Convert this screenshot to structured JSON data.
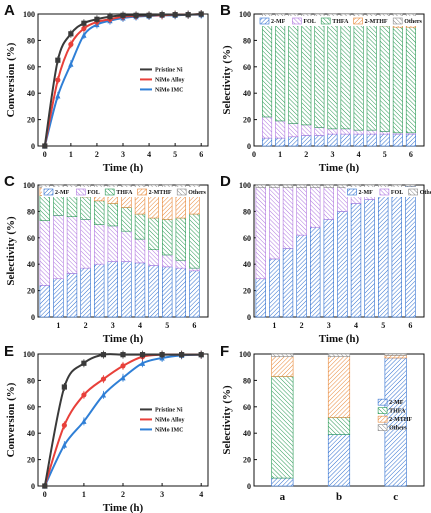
{
  "colors": {
    "pristine": "#3a3a3a",
    "nimo_alloy": "#e8403a",
    "nimo_imc": "#2f7fd6",
    "mf": "#2f6fd0",
    "fol": "#b078e0",
    "thfa": "#2a9a55",
    "mthf": "#e8893a",
    "others": "#8a8a8a"
  },
  "chart_data": [
    {
      "panel": "A",
      "type": "line",
      "xlabel": "Time (h)",
      "ylabel": "Conversion (%)",
      "xlim": [
        0,
        6
      ],
      "ylim": [
        0,
        100
      ],
      "xticks": [
        "0",
        "1",
        "2",
        "3",
        "4",
        "5",
        "6"
      ],
      "yticks": [
        "0",
        "20",
        "40",
        "60",
        "80",
        "100"
      ],
      "legend_position": "center-right",
      "x": [
        0,
        0.5,
        1,
        1.5,
        2,
        2.5,
        3,
        3.5,
        4,
        4.5,
        5,
        5.5,
        6
      ],
      "series": [
        {
          "name": "Pristine Ni",
          "values": [
            0,
            65,
            85,
            93,
            96,
            98,
            99,
            99,
            99,
            99.5,
            99.5,
            99.5,
            100
          ]
        },
        {
          "name": "NiMo Alloy",
          "values": [
            0,
            50,
            77,
            89,
            94,
            96,
            98,
            98.5,
            99,
            99,
            99.5,
            99.5,
            100
          ]
        },
        {
          "name": "NiMo IMC",
          "values": [
            0,
            38,
            62,
            84,
            92,
            95,
            97,
            98,
            98.5,
            99,
            99,
            99.5,
            99.5
          ]
        }
      ]
    },
    {
      "panel": "B",
      "type": "bar",
      "stacked": true,
      "xlabel": "Time (h)",
      "ylabel": "Selectivity (%)",
      "xlim": [
        0,
        6.5
      ],
      "ylim": [
        0,
        100
      ],
      "xticks": [
        "0",
        "1",
        "2",
        "3",
        "4",
        "5",
        "6"
      ],
      "yticks": [
        "0",
        "20",
        "40",
        "60",
        "80",
        "100"
      ],
      "legend_position": "top",
      "x": [
        0.5,
        1,
        1.5,
        2,
        2.5,
        3,
        3.5,
        4,
        4.5,
        5,
        5.5,
        6
      ],
      "series": [
        {
          "name": "2-MF",
          "values": [
            6,
            6,
            7,
            8,
            8,
            9,
            9,
            9,
            9,
            9,
            9,
            9
          ]
        },
        {
          "name": "FOL",
          "values": [
            16,
            13,
            10,
            8,
            6,
            4,
            4,
            3,
            3,
            2,
            1,
            1
          ]
        },
        {
          "name": "THFA",
          "values": [
            73,
            75,
            78,
            78,
            80,
            81,
            80,
            81,
            80,
            80,
            80,
            80
          ]
        },
        {
          "name": "2-MTHF",
          "values": [
            3,
            4,
            3,
            4,
            4,
            4,
            5,
            5,
            6,
            7,
            8,
            8
          ]
        },
        {
          "name": "Others",
          "values": [
            2,
            2,
            2,
            2,
            2,
            2,
            2,
            2,
            2,
            2,
            2,
            2
          ]
        }
      ]
    },
    {
      "panel": "C",
      "type": "bar",
      "stacked": true,
      "xlabel": "Time (h)",
      "ylabel": "Selectivity (%)",
      "xlim": [
        0.25,
        6.5
      ],
      "ylim": [
        0,
        100
      ],
      "xticks": [
        "1",
        "2",
        "3",
        "4",
        "5",
        "6"
      ],
      "yticks": [
        "0",
        "20",
        "40",
        "60",
        "80",
        "100"
      ],
      "legend_position": "top",
      "x": [
        0.5,
        1,
        1.5,
        2,
        2.5,
        3,
        3.5,
        4,
        4.5,
        5,
        5.5,
        6
      ],
      "series": [
        {
          "name": "2-MF",
          "values": [
            24,
            29,
            33,
            37,
            40,
            42,
            42,
            41,
            39,
            38,
            37,
            35
          ]
        },
        {
          "name": "FOL",
          "values": [
            49,
            48,
            43,
            37,
            30,
            27,
            23,
            18,
            12,
            9,
            6,
            2
          ]
        },
        {
          "name": "THFA",
          "values": [
            19,
            15,
            16,
            17,
            18,
            17,
            18,
            19,
            24,
            27,
            32,
            41
          ]
        },
        {
          "name": "2-MTHF",
          "values": [
            6,
            6,
            6,
            7,
            9,
            11,
            14,
            19,
            22,
            23,
            22,
            19
          ]
        },
        {
          "name": "Others",
          "values": [
            2,
            2,
            2,
            2,
            3,
            3,
            3,
            3,
            3,
            3,
            3,
            3
          ]
        }
      ]
    },
    {
      "panel": "D",
      "type": "bar",
      "stacked": true,
      "xlabel": "Time (h)",
      "ylabel": "",
      "xlim": [
        0.25,
        6.5
      ],
      "ylim": [
        0,
        100
      ],
      "xticks": [
        "1",
        "2",
        "3",
        "4",
        "5",
        "6"
      ],
      "yticks": [
        "0",
        "20",
        "40",
        "60",
        "80",
        "100"
      ],
      "legend_position": "top-right",
      "x": [
        0.5,
        1,
        1.5,
        2,
        2.5,
        3,
        3.5,
        4,
        4.5,
        5,
        5.5,
        6
      ],
      "series": [
        {
          "name": "2-MF",
          "values": [
            29,
            44,
            52,
            62,
            68,
            74,
            80,
            86,
            89,
            94,
            96,
            99
          ]
        },
        {
          "name": "FOL",
          "values": [
            69,
            54,
            46,
            36,
            30,
            24,
            18,
            12,
            9,
            4,
            2,
            0
          ]
        },
        {
          "name": "Others",
          "values": [
            2,
            2,
            2,
            2,
            2,
            2,
            2,
            2,
            2,
            2,
            2,
            1
          ]
        }
      ]
    },
    {
      "panel": "E",
      "type": "line",
      "xlabel": "Time (h)",
      "ylabel": "Conversion (%)",
      "xlim": [
        0,
        4
      ],
      "ylim": [
        0,
        100
      ],
      "xticks": [
        "0",
        "1",
        "2",
        "3",
        "4"
      ],
      "yticks": [
        "0",
        "20",
        "40",
        "60",
        "80",
        "100"
      ],
      "legend_position": "center-right",
      "x": [
        0,
        0.5,
        1,
        1.5,
        2,
        2.5,
        3,
        3.5,
        4
      ],
      "series": [
        {
          "name": "Pristine Ni",
          "values": [
            0,
            75,
            93,
            99.5,
            99.5,
            99.5,
            99.5,
            99.5,
            99.5
          ]
        },
        {
          "name": "NiMo Alloy",
          "values": [
            0,
            46,
            69,
            81,
            91,
            98,
            99.5,
            99.5,
            99.5
          ]
        },
        {
          "name": "NiMo IMC",
          "values": [
            0,
            31,
            49,
            69,
            82,
            93,
            97,
            99,
            99.5
          ]
        }
      ]
    },
    {
      "panel": "F",
      "type": "bar",
      "stacked": true,
      "xlabel": "",
      "ylabel": "Selectivity (%)",
      "ylim": [
        0,
        100
      ],
      "categories": [
        "a",
        "b",
        "c"
      ],
      "yticks": [
        "0",
        "20",
        "40",
        "60",
        "80",
        "100"
      ],
      "legend_position": "center-right",
      "series": [
        {
          "name": "2-MF",
          "values": [
            6,
            39,
            97
          ]
        },
        {
          "name": "THFA",
          "values": [
            77,
            13,
            0
          ]
        },
        {
          "name": "2-MTHF",
          "values": [
            15,
            46,
            2
          ]
        },
        {
          "name": "Others",
          "values": [
            2,
            2,
            1
          ]
        }
      ]
    }
  ]
}
